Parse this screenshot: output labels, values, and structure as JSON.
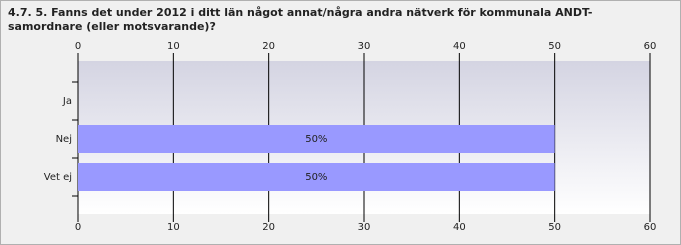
{
  "chart_data": {
    "type": "hbar",
    "title": "4.7. 5. Fanns det under 2012 i ditt län något annat/några andra nätverk för kommunala ANDT-samordnare (eller motsvarande)?",
    "categories": [
      "Ja",
      "Nej",
      "Vet ej"
    ],
    "values": [
      0,
      50,
      50
    ],
    "value_labels": [
      null,
      "50%",
      "50%"
    ],
    "color": "#9999ff",
    "xlim": [
      0,
      60
    ],
    "xticks": [
      0,
      10,
      20,
      30,
      40,
      50,
      60
    ],
    "grid": true
  }
}
